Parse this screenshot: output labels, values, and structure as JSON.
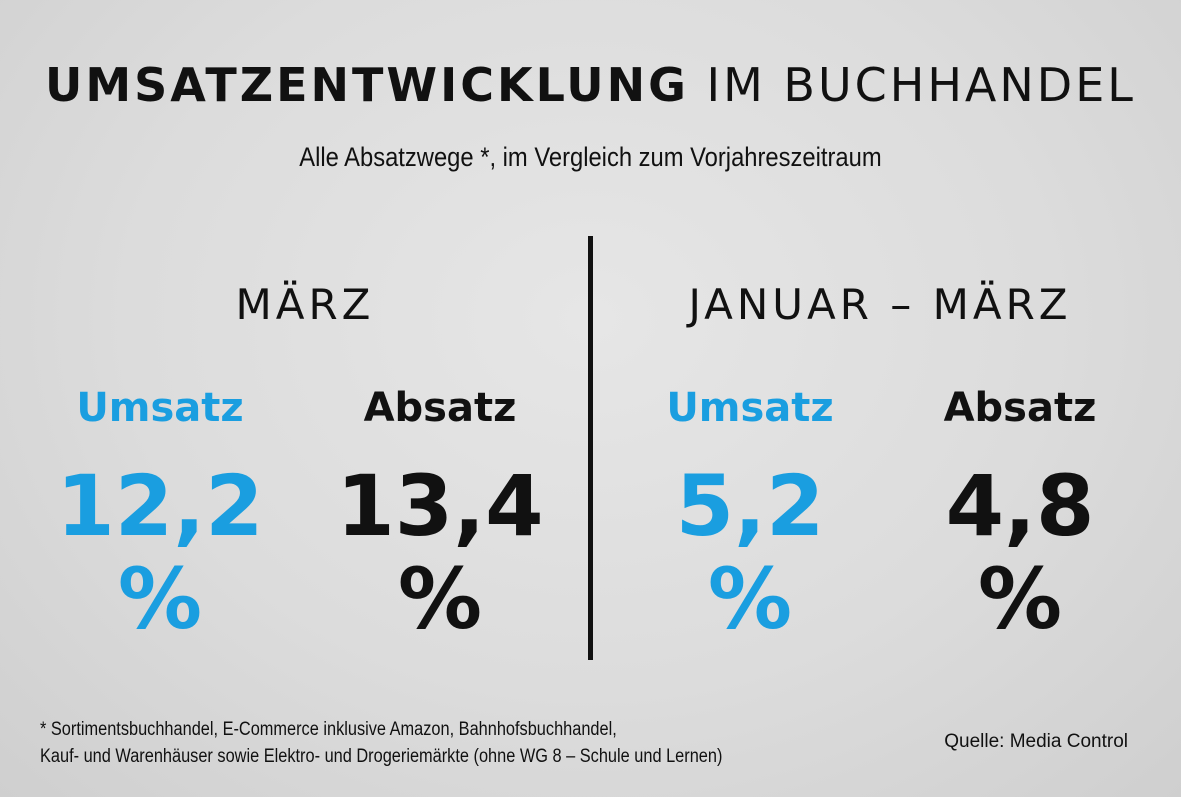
{
  "header": {
    "title_bold": "UMSATZENTWICKLUNG",
    "title_light": "IM BUCHHANDEL",
    "subtitle": "Alle Absatzwege *, im Vergleich zum Vorjahreszeitraum"
  },
  "periods": [
    {
      "label": "MÄRZ",
      "metrics": [
        {
          "label": "Umsatz",
          "value": "12,2",
          "unit": "%"
        },
        {
          "label": "Absatz",
          "value": "13,4",
          "unit": "%"
        }
      ]
    },
    {
      "label": "JANUAR – MÄRZ",
      "metrics": [
        {
          "label": "Umsatz",
          "value": "5,2",
          "unit": "%"
        },
        {
          "label": "Absatz",
          "value": "4,8",
          "unit": "%"
        }
      ]
    }
  ],
  "footer": {
    "footnote_line1": "* Sortimentsbuchhandel, E-Commerce inklusive Amazon, Bahnhofsbuchhandel,",
    "footnote_line2": "Kauf- und Warenhäuser sowie Elektro- und Drogeriemärkte (ohne WG 8 – Schule und Lernen)",
    "source": "Quelle: Media Control"
  },
  "colors": {
    "umsatz": "#1a9ee0",
    "absatz": "#111111",
    "background": "#dcdcdc"
  }
}
